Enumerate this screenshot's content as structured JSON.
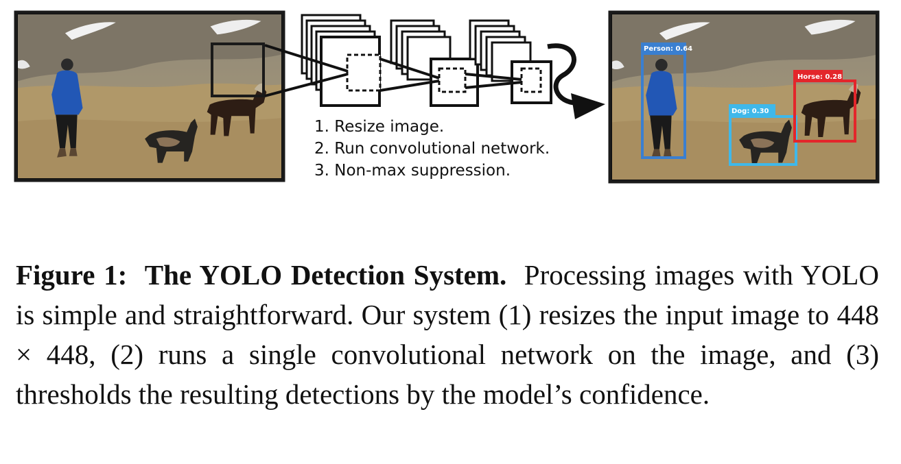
{
  "figure": {
    "steps": [
      "1. Resize image.",
      "2. Run convolutional network.",
      "3. Non-max suppression."
    ],
    "detections": [
      {
        "label": "Person: 0.64",
        "color": "#3a7fd0"
      },
      {
        "label": "Dog: 0.30",
        "color": "#3fb8ea"
      },
      {
        "label": "Horse: 0.28",
        "color": "#e3262b"
      }
    ]
  },
  "caption": {
    "label": "Figure 1:",
    "title": "The YOLO Detection System.",
    "text": "Processing images with YOLO is simple and straightforward. Our system (1) resizes the input image to 448 × 448, (2) runs a single convolutional net­work on the image, and (3) thresholds the resulting detections by the model’s confidence."
  }
}
